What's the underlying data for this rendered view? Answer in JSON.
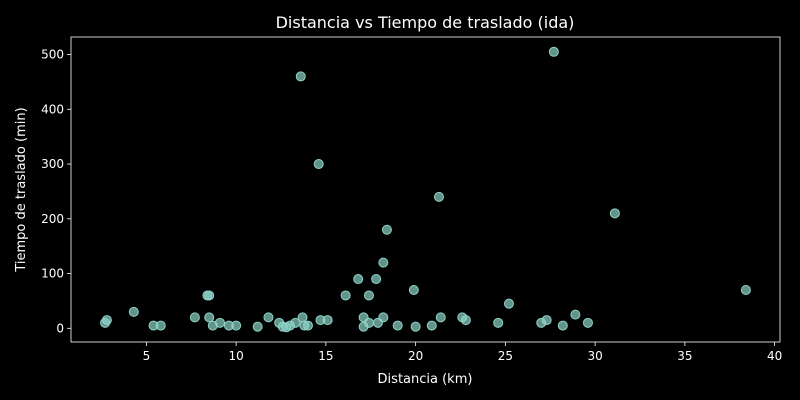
{
  "chart_data": {
    "type": "scatter",
    "title": "Distancia vs Tiempo de traslado (ida)",
    "xlabel": "Distancia (km)",
    "ylabel": "Tiempo de traslado (min)",
    "xlim": [
      0.8,
      40.3
    ],
    "ylim": [
      -25,
      532
    ],
    "xticks": [
      5,
      10,
      15,
      20,
      25,
      30,
      35,
      40
    ],
    "yticks": [
      0,
      100,
      200,
      300,
      400,
      500
    ],
    "grid": false,
    "marker_color": "#8dd3c7",
    "background_color": "#000000",
    "points": [
      {
        "x": 2.7,
        "y": 10
      },
      {
        "x": 2.8,
        "y": 15
      },
      {
        "x": 4.3,
        "y": 30
      },
      {
        "x": 5.4,
        "y": 5
      },
      {
        "x": 5.8,
        "y": 5
      },
      {
        "x": 7.7,
        "y": 20
      },
      {
        "x": 8.4,
        "y": 60
      },
      {
        "x": 8.5,
        "y": 60
      },
      {
        "x": 8.5,
        "y": 20
      },
      {
        "x": 8.7,
        "y": 5
      },
      {
        "x": 9.1,
        "y": 10
      },
      {
        "x": 9.6,
        "y": 5
      },
      {
        "x": 10.0,
        "y": 5
      },
      {
        "x": 11.2,
        "y": 3
      },
      {
        "x": 11.8,
        "y": 20
      },
      {
        "x": 12.4,
        "y": 10
      },
      {
        "x": 12.6,
        "y": 3
      },
      {
        "x": 12.8,
        "y": 2
      },
      {
        "x": 13.0,
        "y": 5
      },
      {
        "x": 13.3,
        "y": 10
      },
      {
        "x": 13.6,
        "y": 460
      },
      {
        "x": 13.7,
        "y": 20
      },
      {
        "x": 13.8,
        "y": 5
      },
      {
        "x": 14.0,
        "y": 5
      },
      {
        "x": 14.6,
        "y": 300
      },
      {
        "x": 14.7,
        "y": 15
      },
      {
        "x": 15.1,
        "y": 15
      },
      {
        "x": 16.1,
        "y": 60
      },
      {
        "x": 16.8,
        "y": 90
      },
      {
        "x": 17.1,
        "y": 20
      },
      {
        "x": 17.1,
        "y": 3
      },
      {
        "x": 17.4,
        "y": 60
      },
      {
        "x": 17.4,
        "y": 10
      },
      {
        "x": 17.8,
        "y": 90
      },
      {
        "x": 17.9,
        "y": 10
      },
      {
        "x": 18.2,
        "y": 20
      },
      {
        "x": 18.2,
        "y": 120
      },
      {
        "x": 18.4,
        "y": 180
      },
      {
        "x": 19.0,
        "y": 5
      },
      {
        "x": 19.9,
        "y": 70
      },
      {
        "x": 20.0,
        "y": 3
      },
      {
        "x": 20.9,
        "y": 5
      },
      {
        "x": 21.3,
        "y": 240
      },
      {
        "x": 21.4,
        "y": 20
      },
      {
        "x": 22.6,
        "y": 20
      },
      {
        "x": 22.8,
        "y": 15
      },
      {
        "x": 24.6,
        "y": 10
      },
      {
        "x": 25.2,
        "y": 45
      },
      {
        "x": 27.0,
        "y": 10
      },
      {
        "x": 27.3,
        "y": 15
      },
      {
        "x": 27.7,
        "y": 505
      },
      {
        "x": 28.2,
        "y": 5
      },
      {
        "x": 28.9,
        "y": 25
      },
      {
        "x": 29.6,
        "y": 10
      },
      {
        "x": 31.1,
        "y": 210
      },
      {
        "x": 38.4,
        "y": 70
      }
    ]
  }
}
